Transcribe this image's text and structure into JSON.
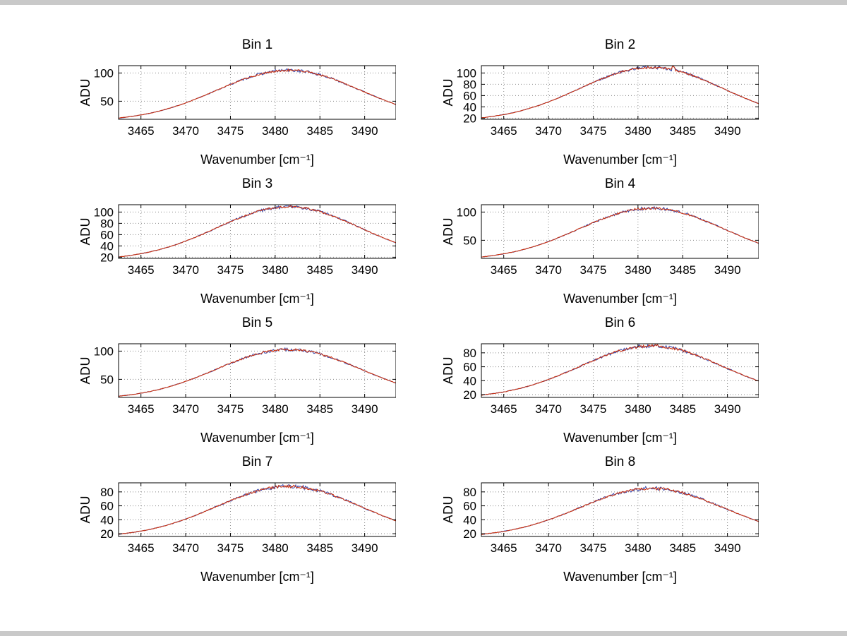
{
  "window": {
    "background": "#ffffff",
    "frame_color": "#c9c9c9"
  },
  "chart_data": {
    "type": "line",
    "layout": "4x2-subplot-grid",
    "xlabel": "Wavenumber [cm⁻¹]",
    "ylabel": "ADU",
    "xlim": [
      3462.5,
      3493.5
    ],
    "xticks": [
      3465,
      3470,
      3475,
      3480,
      3485,
      3490
    ],
    "grid": "dotted",
    "line_colors": [
      "#3344aa",
      "#cc3311"
    ],
    "x": [
      3463,
      3464,
      3465,
      3466,
      3467,
      3468,
      3469,
      3470,
      3471,
      3472,
      3473,
      3474,
      3475,
      3476,
      3477,
      3478,
      3479,
      3480,
      3481,
      3482,
      3483,
      3484,
      3485,
      3486,
      3487,
      3488,
      3489,
      3490,
      3491,
      3492,
      3493
    ],
    "subplots": [
      {
        "title": "Bin 1",
        "yticks": [
          50,
          100
        ],
        "ylim": [
          18,
          113
        ],
        "y": [
          21.2,
          23.2,
          25.7,
          28.8,
          32.4,
          36.7,
          41.6,
          47.0,
          53.0,
          59.5,
          66.2,
          73.0,
          79.7,
          86.1,
          91.8,
          96.8,
          100.7,
          103.4,
          104.8,
          104.8,
          103.4,
          100.7,
          96.8,
          91.8,
          86.1,
          79.7,
          73.0,
          66.2,
          59.5,
          53.0,
          47.0
        ]
      },
      {
        "title": "Bin 2",
        "yticks": [
          20,
          40,
          60,
          80,
          100
        ],
        "ylim": [
          18,
          113
        ],
        "spike": {
          "x": 3484,
          "dy": 6
        },
        "y": [
          21.5,
          23.7,
          26.3,
          29.5,
          33.4,
          37.9,
          43.0,
          48.8,
          55.1,
          61.9,
          69.0,
          76.2,
          83.3,
          90.0,
          96.1,
          101.3,
          105.5,
          108.3,
          109.8,
          109.8,
          108.3,
          105.5,
          101.3,
          96.1,
          90.0,
          83.3,
          76.2,
          69.0,
          61.9,
          55.1,
          48.8
        ]
      },
      {
        "title": "Bin 3",
        "yticks": [
          20,
          40,
          60,
          80,
          100
        ],
        "ylim": [
          18,
          113
        ],
        "y": [
          21.4,
          23.6,
          26.2,
          29.4,
          33.2,
          37.7,
          42.8,
          48.6,
          54.8,
          61.6,
          68.6,
          75.8,
          82.9,
          89.5,
          95.6,
          100.8,
          104.9,
          107.7,
          109.2,
          109.2,
          107.7,
          104.9,
          100.8,
          95.6,
          89.5,
          82.9,
          75.8,
          68.6,
          61.6,
          54.8,
          48.6
        ]
      },
      {
        "title": "Bin 4",
        "yticks": [
          50,
          100
        ],
        "ylim": [
          18,
          113
        ],
        "y": [
          21.3,
          23.4,
          26.0,
          29.1,
          32.8,
          37.1,
          42.1,
          47.7,
          53.9,
          60.5,
          67.3,
          74.3,
          81.1,
          87.6,
          93.5,
          98.6,
          102.6,
          105.4,
          106.8,
          106.8,
          105.4,
          102.6,
          98.6,
          93.5,
          87.6,
          81.1,
          74.3,
          67.3,
          60.5,
          53.9,
          47.7
        ]
      },
      {
        "title": "Bin 5",
        "yticks": [
          50,
          100
        ],
        "ylim": [
          18,
          113
        ],
        "y": [
          21.1,
          23.0,
          25.5,
          28.5,
          32.0,
          36.2,
          41.0,
          46.3,
          52.2,
          58.5,
          65.0,
          71.7,
          78.3,
          84.5,
          90.1,
          95.0,
          98.8,
          101.5,
          102.8,
          102.8,
          101.5,
          98.8,
          95.0,
          90.1,
          84.5,
          78.3,
          71.7,
          65.0,
          58.5,
          52.2,
          46.3
        ]
      },
      {
        "title": "Bin 6",
        "yticks": [
          20,
          40,
          60,
          80
        ],
        "ylim": [
          16,
          93
        ],
        "y": [
          20.2,
          21.9,
          23.9,
          26.5,
          29.5,
          33.1,
          37.1,
          41.7,
          46.7,
          52.1,
          57.6,
          63.3,
          68.9,
          74.2,
          79.0,
          83.2,
          86.4,
          88.7,
          89.9,
          89.9,
          88.7,
          86.4,
          83.2,
          79.0,
          74.2,
          68.9,
          63.3,
          57.6,
          52.1,
          46.7,
          41.7
        ]
      },
      {
        "title": "Bin 7",
        "yticks": [
          20,
          40,
          60,
          80
        ],
        "ylim": [
          16,
          93
        ],
        "y": [
          20.0,
          21.7,
          23.7,
          26.2,
          29.1,
          32.6,
          36.5,
          41.0,
          45.8,
          51.1,
          56.5,
          62.0,
          67.5,
          72.6,
          77.3,
          81.3,
          84.5,
          86.7,
          87.9,
          87.9,
          86.7,
          84.5,
          81.3,
          77.3,
          72.6,
          67.5,
          62.0,
          56.5,
          51.1,
          45.8,
          41.0
        ]
      },
      {
        "title": "Bin 8",
        "yticks": [
          20,
          40,
          60,
          80
        ],
        "ylim": [
          16,
          93
        ],
        "y": [
          19.8,
          21.4,
          23.3,
          25.7,
          28.5,
          31.9,
          35.7,
          39.9,
          44.6,
          49.6,
          54.8,
          60.1,
          65.3,
          70.3,
          74.8,
          78.6,
          81.7,
          83.8,
          84.9,
          84.9,
          83.8,
          81.7,
          78.6,
          74.8,
          70.3,
          65.3,
          60.1,
          54.8,
          49.6,
          44.6,
          39.9
        ]
      }
    ]
  }
}
